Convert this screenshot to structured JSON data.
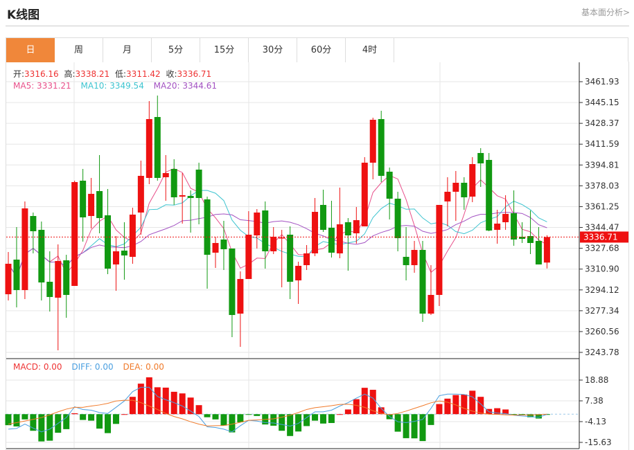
{
  "header": {
    "title": "K线图",
    "fundamental_link": "基本面分析>"
  },
  "tabs": [
    {
      "label": "日",
      "active": true
    },
    {
      "label": "周"
    },
    {
      "label": "月"
    },
    {
      "label": "5分"
    },
    {
      "label": "15分"
    },
    {
      "label": "30分"
    },
    {
      "label": "60分"
    },
    {
      "label": "4时"
    }
  ],
  "colors": {
    "up": "#EE1111",
    "down": "#119911",
    "ma5": "#E8508A",
    "ma10": "#3EC4D0",
    "ma20": "#A352C2",
    "diff": "#4A9FE0",
    "dea": "#F07A2A",
    "active_tab": "#F0873A"
  },
  "ohlc_legend": {
    "open_label": "开:",
    "open": "3316.16",
    "high_label": "高:",
    "high": "3338.21",
    "low_label": "低:",
    "low": "3311.42",
    "close_label": "收:",
    "close": "3336.71"
  },
  "ma_legend": {
    "ma5": "MA5: 3331.21",
    "ma10": "MA10: 3349.54",
    "ma20": "MA20: 3344.61"
  },
  "macd_legend": {
    "macd": "MACD: 0.00",
    "diff": "DIFF: 0.00",
    "dea": "DEA: 0.00"
  },
  "current_price": "3336.71",
  "chart_data": [
    {
      "type": "candlestick",
      "y_ticks": [
        "3461.93",
        "3445.15",
        "3428.37",
        "3411.59",
        "3394.81",
        "3378.03",
        "3361.25",
        "3344.47",
        "3327.68",
        "3310.90",
        "3294.12",
        "3277.34",
        "3260.56",
        "3243.78"
      ],
      "ylim": [
        3243.78,
        3461.93
      ],
      "grid": true,
      "candles": [
        [
          3290.65,
          3324.68,
          3285.63,
          3315.2
        ],
        [
          3318.55,
          3344.77,
          3280.05,
          3294.0
        ],
        [
          3294.0,
          3365.41,
          3286.75,
          3359.83
        ],
        [
          3353.69,
          3356.48,
          3323.57,
          3341.42
        ],
        [
          3342.54,
          3349.23,
          3285.63,
          3300.14
        ],
        [
          3300.69,
          3325.24,
          3276.7,
          3288.42
        ],
        [
          3287.86,
          3330.82,
          3245.46,
          3317.43
        ],
        [
          3317.99,
          3322.45,
          3271.68,
          3290.09
        ],
        [
          3297.35,
          3382.15,
          3297.35,
          3381.03
        ],
        [
          3382.15,
          3391.63,
          3333.05,
          3352.58
        ],
        [
          3353.69,
          3384.38,
          3343.65,
          3371.55
        ],
        [
          3373.78,
          3402.79,
          3339.75,
          3352.02
        ],
        [
          3354.25,
          3375.45,
          3306.83,
          3311.29
        ],
        [
          3314.64,
          3337.52,
          3293.44,
          3325.24
        ],
        [
          3325.8,
          3348.67,
          3302.37,
          3321.89
        ],
        [
          3320.78,
          3360.39,
          3315.2,
          3354.81
        ],
        [
          3356.48,
          3398.33,
          3338.63,
          3386.05
        ],
        [
          3384.38,
          3446.31,
          3379.36,
          3431.8
        ],
        [
          3433.47,
          3450.77,
          3382.15,
          3384.38
        ],
        [
          3384.94,
          3402.79,
          3365.97,
          3388.28
        ],
        [
          3391.63,
          3399.44,
          3362.62,
          3368.76
        ],
        [
          3369.32,
          3388.28,
          3347.56,
          3370.43
        ],
        [
          3369.87,
          3374.34,
          3340.31,
          3368.2
        ],
        [
          3391.07,
          3396.65,
          3347.0,
          3368.2
        ],
        [
          3367.08,
          3369.32,
          3295.12,
          3322.45
        ],
        [
          3324.13,
          3336.96,
          3311.85,
          3331.94
        ],
        [
          3334.73,
          3349.79,
          3310.18,
          3326.92
        ],
        [
          3327.47,
          3327.47,
          3256.06,
          3273.92
        ],
        [
          3275.03,
          3309.06,
          3248.25,
          3302.93
        ],
        [
          3302.93,
          3357.6,
          3302.93,
          3338.63
        ],
        [
          3338.07,
          3359.27,
          3327.47,
          3356.48
        ],
        [
          3358.16,
          3365.41,
          3311.29,
          3325.24
        ],
        [
          3325.24,
          3344.77,
          3323.01,
          3336.96
        ],
        [
          3335.84,
          3342.54,
          3296.23,
          3336.4
        ],
        [
          3338.63,
          3345.33,
          3286.75,
          3300.69
        ],
        [
          3301.81,
          3316.87,
          3282.84,
          3313.53
        ],
        [
          3314.08,
          3330.26,
          3310.18,
          3323.57
        ],
        [
          3323.57,
          3368.2,
          3321.34,
          3357.04
        ],
        [
          3362.62,
          3374.9,
          3340.86,
          3342.54
        ],
        [
          3344.21,
          3365.97,
          3320.22,
          3324.13
        ],
        [
          3323.57,
          3376.57,
          3319.66,
          3347.0
        ],
        [
          3348.67,
          3352.02,
          3309.62,
          3338.07
        ],
        [
          3339.75,
          3360.95,
          3331.38,
          3350.35
        ],
        [
          3345.33,
          3401.12,
          3345.33,
          3396.65
        ],
        [
          3396.65,
          3432.92,
          3383.26,
          3431.24
        ],
        [
          3431.8,
          3438.5,
          3381.03,
          3386.05
        ],
        [
          3389.4,
          3392.75,
          3350.91,
          3367.64
        ],
        [
          3367.64,
          3373.22,
          3325.24,
          3335.84
        ],
        [
          3320.78,
          3344.77,
          3301.81,
          3314.08
        ],
        [
          3314.08,
          3333.61,
          3307.95,
          3326.36
        ],
        [
          3326.36,
          3333.61,
          3268.34,
          3275.03
        ],
        [
          3275.03,
          3314.08,
          3273.92,
          3290.09
        ],
        [
          3290.09,
          3362.62,
          3281.17,
          3362.62
        ],
        [
          3365.41,
          3384.94,
          3345.33,
          3373.22
        ],
        [
          3373.22,
          3389.96,
          3349.79,
          3380.47
        ],
        [
          3380.47,
          3384.94,
          3358.72,
          3368.76
        ],
        [
          3369.32,
          3401.12,
          3364.85,
          3395.54
        ],
        [
          3404.46,
          3408.37,
          3377.13,
          3396.1
        ],
        [
          3398.89,
          3404.46,
          3341.42,
          3341.98
        ],
        [
          3342.54,
          3358.72,
          3331.38,
          3347.56
        ],
        [
          3348.67,
          3370.43,
          3342.54,
          3355.37
        ],
        [
          3355.93,
          3374.34,
          3329.71,
          3334.73
        ],
        [
          3336.96,
          3348.67,
          3331.94,
          3335.28
        ],
        [
          3337.52,
          3358.16,
          3323.01,
          3331.94
        ],
        [
          3333.61,
          3344.77,
          3314.64,
          3314.64
        ],
        [
          3316.16,
          3338.21,
          3311.42,
          3336.71
        ]
      ],
      "moving_averages": [
        5,
        10,
        20
      ]
    },
    {
      "type": "bar+line",
      "y_ticks": [
        "18.88",
        "7.38",
        "-4.13",
        "-15.63"
      ],
      "ylim": [
        -15.63,
        18.88
      ],
      "macd": [
        -6.1,
        -6.8,
        -2.9,
        -9.2,
        -15.1,
        -14.7,
        -10.3,
        -8.3,
        0.5,
        -3.2,
        -3.6,
        -8.0,
        -10.5,
        -5.4,
        0.0,
        9.6,
        16.9,
        20.4,
        14.9,
        14.7,
        12.4,
        11.5,
        9.2,
        5.0,
        -1.7,
        -2.9,
        -6.3,
        -10.1,
        -4.5,
        -0.2,
        -1.0,
        -5.7,
        -6.4,
        -9.2,
        -12.1,
        -9.6,
        -6.6,
        -3.6,
        -5.2,
        -4.9,
        0.0,
        2.6,
        8.3,
        14.6,
        13.5,
        3.8,
        -2.8,
        -9.7,
        -13.3,
        -13.4,
        -14.9,
        -6.0,
        5.6,
        8.6,
        10.6,
        10.9,
        13.0,
        9.6,
        2.9,
        3.3,
        2.6,
        -0.4,
        -0.6,
        -1.7,
        -2.4,
        -0.3
      ],
      "diff": [
        -8.3,
        -7.9,
        -5.5,
        -7.7,
        -9.8,
        -8.3,
        -5.1,
        -1.9,
        4.1,
        2.6,
        2.2,
        0.9,
        0.4,
        3.8,
        7.3,
        12.5,
        14.9,
        14.9,
        9.8,
        8.0,
        6.4,
        4.5,
        1.7,
        -1.3,
        -7.0,
        -7.4,
        -8.3,
        -9.8,
        -6.4,
        -3.4,
        -3.8,
        -4.7,
        -4.9,
        -5.7,
        -6.6,
        -5.1,
        -1.9,
        1.3,
        1.3,
        2.2,
        4.5,
        6.4,
        8.9,
        11.1,
        8.9,
        3.2,
        -1.3,
        -4.2,
        -4.7,
        -4.0,
        -2.9,
        3.2,
        10.2,
        11.1,
        11.1,
        10.9,
        9.6,
        5.7,
        1.3,
        0.6,
        0.3,
        -0.6,
        -1.0,
        -1.4,
        -1.7,
        -0.1
      ],
      "dea": [
        -5.5,
        -4.7,
        -3.8,
        -2.9,
        -1.9,
        -0.4,
        1.3,
        2.8,
        3.8,
        3.8,
        4.5,
        5.1,
        6.0,
        7.3,
        7.7,
        7.7,
        6.4,
        4.5,
        2.6,
        0.4,
        -1.3,
        -2.6,
        -4.2,
        -5.5,
        -6.5,
        -6.4,
        -6.3,
        -5.5,
        -4.5,
        -3.4,
        -3.2,
        -2.9,
        -2.6,
        -1.7,
        -0.6,
        0.9,
        2.6,
        3.6,
        4.1,
        4.7,
        5.4,
        5.5,
        4.9,
        3.8,
        1.9,
        0.4,
        -0.3,
        0.4,
        1.7,
        3.2,
        4.7,
        6.3,
        7.3,
        6.6,
        5.1,
        3.2,
        1.7,
        0.6,
        0.0,
        -0.1,
        -0.4,
        -0.5,
        -0.5,
        -0.5,
        -0.3,
        0.0
      ]
    }
  ]
}
